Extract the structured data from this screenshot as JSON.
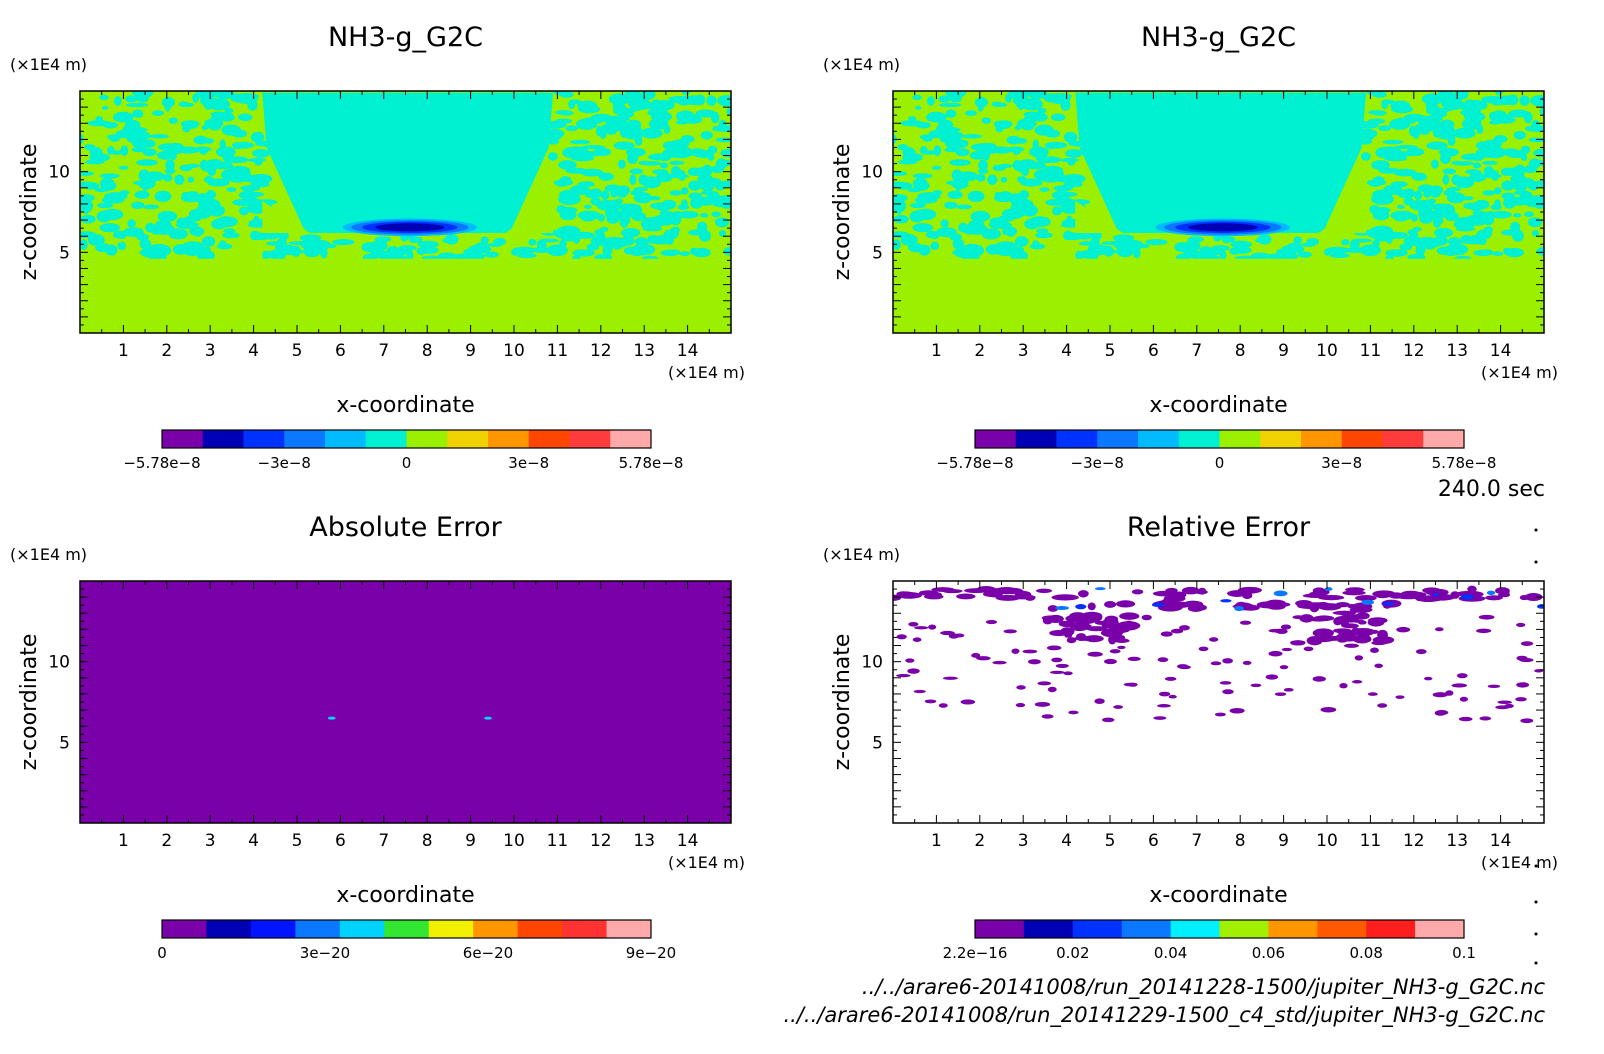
{
  "time_label": "240.0 sec",
  "footer": {
    "file1": "../../arare6-20141008/run_20141228-1500/jupiter_NH3-g_G2C.nc",
    "file2": "../../arare6-20141008/run_20141229-1500_c4_std/jupiter_NH3-g_G2C.nc"
  },
  "chart_data": [
    {
      "type": "heatmap",
      "title": "NH3-g_G2C",
      "xlabel": "x-coordinate",
      "ylabel": "z-coordinate",
      "x_unit": "(×1E4 m)",
      "y_unit": "(×1E4 m)",
      "xlim": [
        0,
        15
      ],
      "ylim": [
        0,
        15
      ],
      "xticks": [
        "1",
        "2",
        "3",
        "4",
        "5",
        "6",
        "7",
        "8",
        "9",
        "10",
        "11",
        "12",
        "13",
        "14"
      ],
      "yticks": [
        "5",
        "10"
      ],
      "colorbar": {
        "colors": [
          "#7a00aa",
          "#0000b4",
          "#0032ff",
          "#0a78ff",
          "#00bbff",
          "#00f0d2",
          "#9bf000",
          "#f0d200",
          "#ff9600",
          "#ff4600",
          "#ff3c3c",
          "#ffaaaa"
        ],
        "labels": [
          "−5.78e−8",
          "−3e−8",
          "0",
          "3e−8",
          "5.78e−8"
        ]
      },
      "pattern": "field"
    },
    {
      "type": "heatmap",
      "title": "NH3-g_G2C",
      "xlabel": "x-coordinate",
      "ylabel": "z-coordinate",
      "x_unit": "(×1E4 m)",
      "y_unit": "(×1E4 m)",
      "xlim": [
        0,
        15
      ],
      "ylim": [
        0,
        15
      ],
      "xticks": [
        "1",
        "2",
        "3",
        "4",
        "5",
        "6",
        "7",
        "8",
        "9",
        "10",
        "11",
        "12",
        "13",
        "14"
      ],
      "yticks": [
        "5",
        "10"
      ],
      "colorbar": {
        "colors": [
          "#7a00aa",
          "#0000b4",
          "#0032ff",
          "#0a78ff",
          "#00bbff",
          "#00f0d2",
          "#9bf000",
          "#f0d200",
          "#ff9600",
          "#ff4600",
          "#ff3c3c",
          "#ffaaaa"
        ],
        "labels": [
          "−5.78e−8",
          "−3e−8",
          "0",
          "3e−8",
          "5.78e−8"
        ]
      },
      "pattern": "field"
    },
    {
      "type": "heatmap",
      "title": "Absolute Error",
      "xlabel": "x-coordinate",
      "ylabel": "z-coordinate",
      "x_unit": "(×1E4 m)",
      "y_unit": "(×1E4 m)",
      "xlim": [
        0,
        15
      ],
      "ylim": [
        0,
        15
      ],
      "xticks": [
        "1",
        "2",
        "3",
        "4",
        "5",
        "6",
        "7",
        "8",
        "9",
        "10",
        "11",
        "12",
        "13",
        "14"
      ],
      "yticks": [
        "5",
        "10"
      ],
      "colorbar": {
        "colors": [
          "#7a00aa",
          "#0000b4",
          "#0014ff",
          "#0a78ff",
          "#00d2ff",
          "#32e632",
          "#f0f000",
          "#ff9600",
          "#ff4600",
          "#ff3232",
          "#ffaaaa"
        ],
        "labels": [
          "0",
          "3e−20",
          "6e−20",
          "9e−20"
        ]
      },
      "pattern": "uniform"
    },
    {
      "type": "heatmap",
      "title": "Relative Error",
      "xlabel": "x-coordinate",
      "ylabel": "z-coordinate",
      "x_unit": "(×1E4 m)",
      "y_unit": "(×1E4 m)",
      "xlim": [
        0,
        15
      ],
      "ylim": [
        0,
        15
      ],
      "xticks": [
        "1",
        "2",
        "3",
        "4",
        "5",
        "6",
        "7",
        "8",
        "9",
        "10",
        "11",
        "12",
        "13",
        "14"
      ],
      "yticks": [
        "5",
        "10"
      ],
      "colorbar": {
        "colors": [
          "#7a00aa",
          "#0000b4",
          "#0032ff",
          "#0a78ff",
          "#00f0ff",
          "#a0f000",
          "#ff9600",
          "#ff5a00",
          "#ff1e1e",
          "#ffaaaa"
        ],
        "labels": [
          "2.2e−16",
          "0.02",
          "0.04",
          "0.06",
          "0.08",
          "0.1"
        ]
      },
      "pattern": "sparse"
    }
  ]
}
